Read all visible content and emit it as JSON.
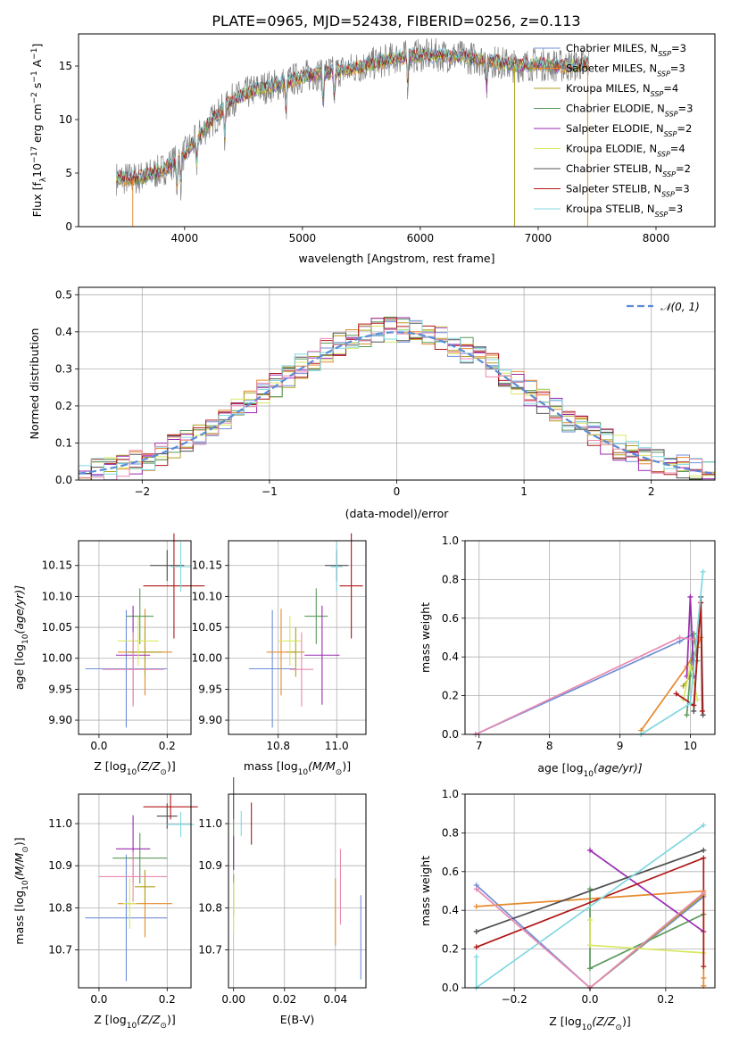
{
  "title": "PLATE=0965, MJD=52438, FIBERID=0256, z=0.113",
  "colors": {
    "spectrum": "#808080",
    "normal": "#5b8bd6",
    "grid": "#b0b0b0",
    "models": [
      "#6f8ed8",
      "#e68a2e",
      "#b0a020",
      "#5a9a5a",
      "#9a2ab0",
      "#d8e860",
      "#505050",
      "#b01818",
      "#80d8e0",
      "#e88ab0"
    ]
  },
  "chart_data": [
    {
      "id": "spectrum",
      "type": "line",
      "xlabel": "wavelength [Angstrom, rest frame]",
      "ylabel": "Flux [f",
      "ylabel_sub": "λ",
      "ylabel_rest": "10",
      "ylabel_sup1": "−17",
      "ylabel_mid": " erg cm",
      "ylabel_sup2": "−2",
      "ylabel_s": " s",
      "ylabel_sup3": "−1",
      "ylabel_end": " A",
      "ylabel_sup4": "−1",
      "ylabel_close": "]",
      "xlim": [
        3100,
        8500
      ],
      "ylim": [
        0,
        18
      ],
      "xticks": [
        4000,
        5000,
        6000,
        7000,
        8000
      ],
      "yticks": [
        0,
        5,
        10,
        15
      ],
      "x_range_data": [
        3420,
        7430
      ],
      "continuum_knots": [
        [
          3420,
          4.5
        ],
        [
          3600,
          4.5
        ],
        [
          3800,
          5.2
        ],
        [
          4000,
          6.8
        ],
        [
          4200,
          9.5
        ],
        [
          4400,
          11.8
        ],
        [
          4600,
          12.8
        ],
        [
          4800,
          13.3
        ],
        [
          5000,
          14.0
        ],
        [
          5200,
          14.4
        ],
        [
          5400,
          14.7
        ],
        [
          5600,
          15.2
        ],
        [
          5800,
          15.8
        ],
        [
          6000,
          16.0
        ],
        [
          6200,
          16.0
        ],
        [
          6400,
          15.8
        ],
        [
          6600,
          15.5
        ],
        [
          6800,
          15.0
        ],
        [
          7000,
          15.2
        ],
        [
          7200,
          15.0
        ],
        [
          7430,
          15.2
        ]
      ],
      "legend": [
        {
          "imf": "Chabrier MILES",
          "n": "3"
        },
        {
          "imf": "Salpeter MILES",
          "n": "3"
        },
        {
          "imf": "Kroupa MILES",
          "n": "4"
        },
        {
          "imf": "Chabrier ELODIE",
          "n": "3"
        },
        {
          "imf": "Salpeter ELODIE",
          "n": "2"
        },
        {
          "imf": "Kroupa ELODIE",
          "n": "4"
        },
        {
          "imf": "Chabrier STELIB",
          "n": "2"
        },
        {
          "imf": "Salpeter STELIB",
          "n": "3"
        },
        {
          "imf": "Kroupa STELIB",
          "n": "3"
        }
      ],
      "legend_suffix_label": "N",
      "legend_suffix_sub": "SSP",
      "legend_placement": "upper-right",
      "grid": false
    },
    {
      "id": "residuals",
      "type": "histogram",
      "xlabel": "(data-model)/error",
      "ylabel": "Normed distribution",
      "xlim": [
        -2.5,
        2.5
      ],
      "ylim": [
        0,
        0.52
      ],
      "xticks": [
        -2,
        -1,
        0,
        1,
        2
      ],
      "yticks": [
        0,
        0.1,
        0.2,
        0.3,
        0.4,
        0.5
      ],
      "legend": [
        {
          "label": "𝒩(0, 1)"
        }
      ],
      "legend_placement": "upper-right",
      "grid": true,
      "bin_width": 0.1
    },
    {
      "id": "age_vs_Z",
      "type": "scatter-errorbar",
      "xlabel": "Z [log",
      "xlabel_sub": "10",
      "xlabel_rest": "(Z/Z",
      "xlabel_sub2": "⊙",
      "xlabel_close": ")]",
      "ylabel": "age  [log",
      "ylabel_sub": "10",
      "ylabel_rest": "(age/yr)]",
      "xlim": [
        -0.06,
        0.27
      ],
      "ylim": [
        9.877,
        10.19
      ],
      "xticks": [
        0.0,
        0.2
      ],
      "yticks": [
        9.9,
        9.95,
        10.0,
        10.05,
        10.1,
        10.15
      ],
      "grid": true,
      "points": [
        {
          "x": 0.08,
          "xerr": 0.12,
          "y": 9.983,
          "yerr": 0.095,
          "c": 0
        },
        {
          "x": 0.135,
          "xerr": 0.08,
          "y": 10.01,
          "yerr": 0.07,
          "c": 1
        },
        {
          "x": 0.135,
          "xerr": 0.05,
          "y": 10.01,
          "yerr": 0.04,
          "c": 2
        },
        {
          "x": 0.12,
          "xerr": 0.04,
          "y": 10.068,
          "yerr": 0.045,
          "c": 3
        },
        {
          "x": 0.1,
          "xerr": 0.05,
          "y": 10.005,
          "yerr": 0.08,
          "c": 4
        },
        {
          "x": 0.115,
          "xerr": 0.06,
          "y": 10.028,
          "yerr": 0.04,
          "c": 5
        },
        {
          "x": 0.2,
          "xerr": 0.05,
          "y": 10.15,
          "yerr": 0.025,
          "c": 6
        },
        {
          "x": 0.22,
          "xerr": 0.09,
          "y": 10.117,
          "yerr": 0.085,
          "c": 7
        },
        {
          "x": 0.24,
          "xerr": 0.03,
          "y": 10.148,
          "yerr": 0.04,
          "c": 8
        },
        {
          "x": 0.1,
          "xerr": 0.09,
          "y": 9.982,
          "yerr": 0.06,
          "c": 9
        }
      ]
    },
    {
      "id": "age_vs_mass",
      "type": "scatter-errorbar",
      "xlabel": "mass [log",
      "xlabel_sub": "10",
      "xlabel_rest": "(M/M",
      "xlabel_sub2": "⊙",
      "xlabel_close": ")]",
      "xlim": [
        10.63,
        11.1
      ],
      "ylim": [
        9.877,
        10.19
      ],
      "xticks": [
        10.8,
        11.0
      ],
      "yticks": [
        9.9,
        9.95,
        10.0,
        10.05,
        10.1,
        10.15
      ],
      "grid": true,
      "points": [
        {
          "x": 10.78,
          "xerr": 0.08,
          "y": 9.983,
          "yerr": 0.095,
          "c": 0
        },
        {
          "x": 10.81,
          "xerr": 0.05,
          "y": 10.01,
          "yerr": 0.07,
          "c": 1
        },
        {
          "x": 10.86,
          "xerr": 0.03,
          "y": 10.01,
          "yerr": 0.04,
          "c": 2
        },
        {
          "x": 10.93,
          "xerr": 0.04,
          "y": 10.068,
          "yerr": 0.045,
          "c": 3
        },
        {
          "x": 10.95,
          "xerr": 0.06,
          "y": 10.005,
          "yerr": 0.08,
          "c": 4
        },
        {
          "x": 10.84,
          "xerr": 0.04,
          "y": 10.028,
          "yerr": 0.04,
          "c": 5
        },
        {
          "x": 11.0,
          "xerr": 0.04,
          "y": 10.15,
          "yerr": 0.025,
          "c": 6
        },
        {
          "x": 11.05,
          "xerr": 0.04,
          "y": 10.117,
          "yerr": 0.085,
          "c": 7
        },
        {
          "x": 11.0,
          "xerr": 0.02,
          "y": 10.148,
          "yerr": 0.04,
          "c": 8
        },
        {
          "x": 10.88,
          "xerr": 0.04,
          "y": 9.982,
          "yerr": 0.06,
          "c": 9
        }
      ]
    },
    {
      "id": "weight_vs_age",
      "type": "line",
      "xlabel": "age  [log",
      "xlabel_sub": "10",
      "xlabel_rest": "(age/yr)]",
      "ylabel": "mass weight",
      "xlim": [
        6.8,
        10.35
      ],
      "ylim": [
        0,
        1.0
      ],
      "xticks": [
        7,
        8,
        9,
        10
      ],
      "yticks": [
        0.0,
        0.2,
        0.4,
        0.6,
        0.8,
        1.0
      ],
      "grid": true,
      "series": [
        {
          "c": 0,
          "x": [
            6.95,
            9.85,
            10.05
          ],
          "y": [
            0.0,
            0.48,
            0.52
          ]
        },
        {
          "c": 1,
          "x": [
            9.3,
            9.95,
            10.1,
            10.15
          ],
          "y": [
            0.02,
            0.35,
            0.45,
            0.5
          ]
        },
        {
          "c": 2,
          "x": [
            9.9,
            10.0,
            10.1
          ],
          "y": [
            0.25,
            0.3,
            0.45
          ]
        },
        {
          "c": 3,
          "x": [
            9.95,
            10.05,
            10.1
          ],
          "y": [
            0.1,
            0.52,
            0.38
          ]
        },
        {
          "c": 4,
          "x": [
            9.95,
            10.0,
            10.05
          ],
          "y": [
            0.3,
            0.71,
            0.3
          ]
        },
        {
          "c": 5,
          "x": [
            9.9,
            10.0,
            10.1
          ],
          "y": [
            0.18,
            0.35,
            0.18
          ]
        },
        {
          "c": 6,
          "x": [
            10.05,
            10.15,
            10.18
          ],
          "y": [
            0.12,
            0.71,
            0.1
          ]
        },
        {
          "c": 7,
          "x": [
            9.8,
            10.05,
            10.15,
            10.17
          ],
          "y": [
            0.21,
            0.15,
            0.68,
            0.12
          ]
        },
        {
          "c": 8,
          "x": [
            9.3,
            10.0,
            10.18
          ],
          "y": [
            0.0,
            0.16,
            0.84
          ]
        },
        {
          "c": 9,
          "x": [
            6.95,
            9.85,
            10.05
          ],
          "y": [
            0.0,
            0.5,
            0.49
          ]
        }
      ]
    },
    {
      "id": "mass_vs_Z",
      "type": "scatter-errorbar",
      "xlabel": "Z [log",
      "xlabel_sub": "10",
      "xlabel_rest": "(Z/Z",
      "xlabel_sub2": "⊙",
      "xlabel_close": ")]",
      "ylabel": "mass [log",
      "ylabel_sub": "10",
      "ylabel_rest": "(M/M",
      "ylabel_sub2": "⊙",
      "ylabel_close": ")]",
      "xlim": [
        -0.06,
        0.27
      ],
      "ylim": [
        10.61,
        11.07
      ],
      "xticks": [
        0.0,
        0.2
      ],
      "yticks": [
        10.7,
        10.8,
        10.9,
        11.0
      ],
      "grid": true,
      "points": [
        {
          "x": 0.08,
          "xerr": 0.12,
          "y": 10.776,
          "yerr": 0.15,
          "c": 0
        },
        {
          "x": 0.135,
          "xerr": 0.08,
          "y": 10.81,
          "yerr": 0.08,
          "c": 1
        },
        {
          "x": 0.135,
          "xerr": 0.03,
          "y": 10.85,
          "yerr": 0.04,
          "c": 2
        },
        {
          "x": 0.12,
          "xerr": 0.08,
          "y": 10.918,
          "yerr": 0.06,
          "c": 3
        },
        {
          "x": 0.1,
          "xerr": 0.05,
          "y": 10.94,
          "yerr": 0.08,
          "c": 4
        },
        {
          "x": 0.09,
          "xerr": 0.02,
          "y": 10.81,
          "yerr": 0.06,
          "c": 5
        },
        {
          "x": 0.2,
          "xerr": 0.03,
          "y": 11.018,
          "yerr": 0.03,
          "c": 6
        },
        {
          "x": 0.21,
          "xerr": 0.08,
          "y": 11.04,
          "yerr": 0.03,
          "c": 7
        },
        {
          "x": 0.24,
          "xerr": 0.04,
          "y": 10.998,
          "yerr": 0.03,
          "c": 8
        },
        {
          "x": 0.1,
          "xerr": 0.1,
          "y": 10.874,
          "yerr": 0.06,
          "c": 9
        }
      ]
    },
    {
      "id": "mass_vs_ebv",
      "type": "scatter-errorbar",
      "xlabel": "E(B-V)",
      "xlim": [
        -0.002,
        0.052
      ],
      "ylim": [
        10.61,
        11.07
      ],
      "xticks": [
        0.0,
        0.02,
        0.04
      ],
      "xtick_labels": [
        "0.00",
        "0.02",
        "0.04"
      ],
      "yticks": [
        10.7,
        10.8,
        10.9,
        11.0
      ],
      "grid": true,
      "points": [
        {
          "x": 0.05,
          "xerr": 0,
          "y": 10.73,
          "yerr": 0.1,
          "c": 0
        },
        {
          "x": 0.04,
          "xerr": 0,
          "y": 10.79,
          "yerr": 0.08,
          "c": 1
        },
        {
          "x": 0.0,
          "xerr": 0,
          "y": 10.83,
          "yerr": 0.05,
          "c": 2
        },
        {
          "x": 0.0,
          "xerr": 0,
          "y": 10.95,
          "yerr": 0.06,
          "c": 3
        },
        {
          "x": 0.0,
          "xerr": 0,
          "y": 10.93,
          "yerr": 0.04,
          "c": 4
        },
        {
          "x": 0.0,
          "xerr": 0,
          "y": 10.8,
          "yerr": 0.06,
          "c": 5
        },
        {
          "x": 0.0,
          "xerr": 0,
          "y": 11.06,
          "yerr": 0.05,
          "c": 6
        },
        {
          "x": 0.007,
          "xerr": 0,
          "y": 11.0,
          "yerr": 0.05,
          "c": 7
        },
        {
          "x": 0.003,
          "xerr": 0,
          "y": 11.0,
          "yerr": 0.03,
          "c": 8
        },
        {
          "x": 0.042,
          "xerr": 0,
          "y": 10.85,
          "yerr": 0.09,
          "c": 9
        }
      ]
    },
    {
      "id": "weight_vs_Z",
      "type": "line",
      "xlabel": "Z [log",
      "xlabel_sub": "10",
      "xlabel_rest": "(Z/Z",
      "xlabel_sub2": "⊙",
      "xlabel_close": ")]",
      "ylabel": "mass weight",
      "xlim": [
        -0.33,
        0.33
      ],
      "ylim": [
        0,
        1.0
      ],
      "xticks": [
        -0.2,
        0.0,
        0.2
      ],
      "xtick_labels": [
        "−0.2",
        "0.0",
        "0.2"
      ],
      "yticks": [
        0.0,
        0.2,
        0.4,
        0.6,
        0.8,
        1.0
      ],
      "grid": true,
      "series": [
        {
          "c": 0,
          "x": [
            -0.3,
            0.0,
            0.3
          ],
          "y": [
            0.53,
            0.0,
            0.47
          ]
        },
        {
          "c": 1,
          "x": [
            -0.3,
            0.3,
            0.3,
            0.3
          ],
          "y": [
            0.42,
            0.5,
            0.05,
            0.01
          ]
        },
        {
          "c": 2,
          "x": [
            0.0,
            0.3
          ],
          "y": [
            0.0,
            0.48
          ]
        },
        {
          "c": 3,
          "x": [
            0.0,
            0.0,
            0.3
          ],
          "y": [
            0.51,
            0.1,
            0.38
          ]
        },
        {
          "c": 4,
          "x": [
            0.0,
            0.3
          ],
          "y": [
            0.71,
            0.29
          ]
        },
        {
          "c": 5,
          "x": [
            0.0,
            0.0,
            0.3
          ],
          "y": [
            0.35,
            0.22,
            0.18
          ]
        },
        {
          "c": 6,
          "x": [
            -0.3,
            0.3
          ],
          "y": [
            0.29,
            0.71
          ]
        },
        {
          "c": 7,
          "x": [
            -0.3,
            0.3,
            0.3
          ],
          "y": [
            0.21,
            0.67,
            0.11
          ]
        },
        {
          "c": 8,
          "x": [
            -0.3,
            -0.3,
            0.3
          ],
          "y": [
            0.16,
            0.0,
            0.84
          ]
        },
        {
          "c": 9,
          "x": [
            -0.3,
            0.0,
            0.3
          ],
          "y": [
            0.51,
            0.0,
            0.49
          ]
        }
      ]
    }
  ]
}
